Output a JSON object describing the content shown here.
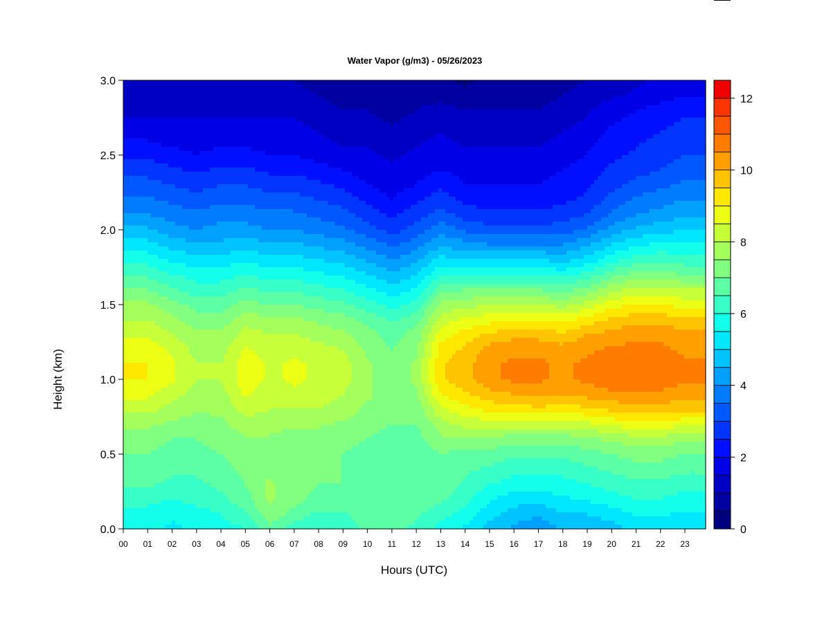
{
  "chart_data": {
    "type": "heatmap",
    "title": "Water Vapor (g/m3) - 05/26/2023",
    "xlabel": "Hours (UTC)",
    "ylabel": "Height (km)",
    "x_ticks": [
      "00",
      "01",
      "02",
      "03",
      "04",
      "05",
      "06",
      "07",
      "08",
      "09",
      "10",
      "11",
      "12",
      "13",
      "14",
      "15",
      "16",
      "17",
      "18",
      "19",
      "20",
      "21",
      "22",
      "23"
    ],
    "xlim": [
      0,
      23.85
    ],
    "y_ticks": [
      "0.0",
      "0.5",
      "1.0",
      "1.5",
      "2.0",
      "2.5",
      "3.0"
    ],
    "ylim": [
      0,
      3.0
    ],
    "colorbar": {
      "range": [
        0,
        12.5
      ],
      "step": 0.5,
      "ticks": [
        "0",
        "2",
        "4",
        "6",
        "8",
        "10",
        "12"
      ],
      "colors": [
        "#00007F",
        "#0000A0",
        "#0000C4",
        "#0000E6",
        "#0010FF",
        "#0034FF",
        "#0058FF",
        "#007CFF",
        "#00A0FF",
        "#00C4FF",
        "#00E8FF",
        "#14FFEB",
        "#38FFC7",
        "#5CFFA3",
        "#80FF80",
        "#A3FF5C",
        "#C7FF38",
        "#EBFF14",
        "#FFE800",
        "#FFC400",
        "#FFA000",
        "#FF7C00",
        "#FF5800",
        "#FF3400",
        "#F00000"
      ]
    },
    "x_hours": [
      0,
      1,
      2,
      3,
      4,
      5,
      6,
      7,
      8,
      9,
      10,
      11,
      12,
      13,
      14,
      15,
      16,
      17,
      18,
      19,
      20,
      21,
      22,
      23,
      23.85
    ],
    "y_heights_km": [
      0.0,
      0.1,
      0.2,
      0.3,
      0.4,
      0.5,
      0.6,
      0.7,
      0.8,
      0.9,
      1.0,
      1.1,
      1.2,
      1.3,
      1.4,
      1.5,
      1.6,
      1.7,
      1.8,
      1.9,
      2.0,
      2.1,
      2.2,
      2.3,
      2.4,
      2.5,
      2.6,
      2.7,
      2.8,
      2.9,
      3.0
    ],
    "values_g_m3": [
      [
        5.6,
        5.8,
        6.2,
        6.6,
        6.8,
        7.0,
        7.2,
        7.6,
        8.2,
        8.6,
        9.0,
        9.0,
        8.8,
        8.4,
        8.0,
        7.6,
        7.0,
        6.4,
        5.8,
        5.2,
        4.6,
        4.0,
        3.6,
        3.2,
        2.8,
        2.4,
        2.0,
        1.6,
        1.4,
        1.2,
        1.0
      ],
      [
        5.6,
        5.8,
        6.2,
        6.6,
        6.8,
        7.0,
        7.2,
        7.6,
        8.2,
        8.6,
        9.0,
        9.0,
        8.8,
        8.4,
        8.0,
        7.6,
        7.0,
        6.4,
        5.8,
        5.2,
        4.6,
        4.0,
        3.6,
        3.2,
        2.8,
        2.4,
        2.0,
        1.6,
        1.4,
        1.2,
        1.0
      ],
      [
        5.4,
        5.6,
        6.0,
        6.4,
        6.6,
        6.8,
        7.0,
        7.4,
        7.8,
        8.2,
        8.6,
        8.6,
        8.4,
        8.0,
        7.6,
        7.2,
        6.6,
        6.0,
        5.4,
        4.8,
        4.2,
        3.8,
        3.4,
        3.0,
        2.6,
        2.2,
        1.8,
        1.6,
        1.4,
        1.2,
        1.0
      ],
      [
        5.6,
        5.8,
        6.2,
        6.4,
        6.6,
        6.8,
        7.0,
        7.2,
        7.6,
        7.8,
        8.0,
        8.0,
        7.8,
        7.6,
        7.2,
        6.8,
        6.2,
        5.8,
        5.2,
        4.6,
        4.0,
        3.6,
        3.2,
        2.8,
        2.4,
        2.0,
        1.8,
        1.6,
        1.4,
        1.2,
        1.0
      ],
      [
        5.8,
        6.0,
        6.4,
        6.6,
        6.8,
        7.0,
        7.2,
        7.4,
        7.6,
        7.8,
        8.0,
        8.0,
        7.8,
        7.6,
        7.2,
        6.8,
        6.2,
        5.8,
        5.2,
        4.6,
        4.2,
        3.8,
        3.4,
        3.0,
        2.6,
        2.2,
        1.8,
        1.6,
        1.4,
        1.2,
        1.0
      ],
      [
        6.0,
        6.4,
        6.8,
        7.0,
        7.2,
        7.2,
        7.4,
        7.8,
        8.2,
        8.6,
        8.8,
        8.8,
        8.6,
        8.2,
        7.8,
        7.2,
        6.6,
        6.0,
        5.4,
        4.8,
        4.2,
        3.8,
        3.4,
        3.0,
        2.6,
        2.2,
        1.8,
        1.6,
        1.4,
        1.2,
        1.0
      ],
      [
        6.8,
        7.4,
        7.6,
        7.6,
        7.4,
        7.2,
        7.4,
        7.8,
        8.0,
        8.2,
        8.4,
        8.4,
        8.2,
        8.0,
        7.6,
        7.0,
        6.4,
        5.8,
        5.2,
        4.6,
        4.0,
        3.6,
        3.2,
        2.8,
        2.4,
        2.0,
        1.8,
        1.6,
        1.4,
        1.2,
        1.0
      ],
      [
        6.2,
        6.8,
        7.2,
        7.2,
        7.0,
        7.0,
        7.2,
        7.6,
        8.0,
        8.4,
        8.6,
        8.6,
        8.4,
        8.0,
        7.6,
        7.0,
        6.4,
        5.8,
        5.2,
        4.6,
        4.0,
        3.6,
        3.2,
        2.8,
        2.4,
        2.0,
        1.8,
        1.6,
        1.4,
        1.2,
        1.0
      ],
      [
        6.0,
        6.4,
        6.8,
        7.0,
        7.0,
        7.0,
        7.2,
        7.6,
        8.0,
        8.2,
        8.4,
        8.4,
        8.2,
        7.8,
        7.4,
        6.8,
        6.2,
        5.6,
        5.0,
        4.4,
        3.8,
        3.4,
        3.0,
        2.6,
        2.2,
        1.8,
        1.6,
        1.4,
        1.2,
        1.0,
        0.8
      ],
      [
        6.0,
        6.4,
        6.8,
        7.0,
        7.0,
        7.0,
        7.2,
        7.4,
        7.8,
        8.0,
        8.2,
        8.2,
        8.0,
        7.6,
        7.2,
        6.6,
        6.0,
        5.4,
        4.8,
        4.2,
        3.6,
        3.2,
        2.8,
        2.4,
        2.0,
        1.6,
        1.4,
        1.2,
        1.0,
        0.8,
        0.8
      ],
      [
        6.8,
        7.0,
        7.0,
        6.8,
        6.8,
        6.8,
        7.0,
        7.2,
        7.4,
        7.6,
        7.6,
        7.6,
        7.4,
        7.2,
        6.8,
        6.2,
        5.6,
        5.0,
        4.4,
        3.8,
        3.2,
        2.8,
        2.4,
        2.0,
        1.8,
        1.6,
        1.4,
        1.2,
        1.0,
        0.8,
        0.6
      ],
      [
        6.6,
        6.8,
        6.8,
        6.8,
        6.6,
        6.6,
        6.8,
        7.0,
        7.2,
        7.2,
        7.2,
        7.2,
        7.0,
        6.8,
        6.4,
        5.8,
        5.2,
        4.6,
        4.0,
        3.4,
        2.8,
        2.4,
        2.0,
        1.8,
        1.6,
        1.4,
        1.2,
        1.0,
        0.8,
        0.6,
        0.6
      ],
      [
        6.4,
        6.6,
        6.8,
        6.8,
        6.6,
        6.6,
        6.8,
        7.0,
        7.2,
        7.4,
        7.6,
        7.6,
        7.4,
        7.2,
        6.8,
        6.2,
        5.6,
        5.0,
        4.4,
        3.8,
        3.2,
        2.8,
        2.4,
        2.0,
        1.8,
        1.6,
        1.4,
        1.2,
        1.0,
        0.8,
        0.6
      ],
      [
        5.8,
        6.2,
        6.6,
        6.8,
        6.8,
        7.0,
        7.4,
        7.8,
        8.4,
        9.0,
        9.4,
        9.4,
        9.2,
        8.8,
        8.2,
        7.6,
        6.8,
        6.0,
        5.2,
        4.4,
        3.8,
        3.2,
        2.8,
        2.4,
        2.0,
        1.8,
        1.6,
        1.4,
        1.2,
        0.8,
        0.6
      ],
      [
        5.4,
        5.8,
        6.2,
        6.4,
        6.6,
        6.8,
        7.4,
        8.2,
        8.8,
        9.4,
        9.8,
        9.8,
        9.6,
        9.2,
        8.6,
        7.8,
        7.0,
        6.0,
        5.0,
        4.2,
        3.4,
        2.8,
        2.4,
        2.0,
        1.8,
        1.6,
        1.4,
        1.2,
        1.0,
        0.6,
        0.4
      ],
      [
        4.8,
        5.2,
        5.6,
        6.0,
        6.4,
        6.8,
        7.4,
        8.2,
        9.2,
        9.8,
        10.4,
        10.4,
        10.2,
        9.6,
        8.8,
        8.0,
        7.0,
        6.0,
        5.0,
        4.0,
        3.2,
        2.6,
        2.2,
        2.0,
        1.8,
        1.6,
        1.4,
        1.2,
        1.0,
        0.8,
        0.6
      ],
      [
        4.4,
        4.8,
        5.2,
        5.8,
        6.2,
        6.6,
        7.2,
        8.2,
        9.2,
        10.0,
        10.6,
        10.6,
        10.4,
        9.8,
        9.0,
        8.0,
        7.0,
        6.0,
        5.0,
        4.0,
        3.2,
        2.6,
        2.2,
        2.0,
        1.8,
        1.6,
        1.4,
        1.2,
        1.0,
        0.8,
        0.6
      ],
      [
        4.0,
        4.6,
        5.2,
        5.8,
        6.2,
        6.6,
        7.2,
        8.2,
        9.4,
        10.2,
        10.6,
        10.6,
        10.4,
        9.8,
        9.0,
        8.0,
        7.0,
        6.0,
        5.0,
        4.0,
        3.2,
        2.6,
        2.2,
        2.0,
        1.8,
        1.6,
        1.4,
        1.2,
        1.0,
        0.8,
        0.8
      ],
      [
        4.6,
        5.0,
        5.4,
        5.8,
        6.2,
        6.6,
        7.2,
        8.2,
        9.2,
        10.0,
        10.4,
        10.4,
        10.2,
        9.6,
        8.8,
        7.8,
        6.8,
        5.8,
        4.8,
        4.0,
        3.2,
        2.8,
        2.4,
        2.2,
        2.0,
        1.8,
        1.6,
        1.4,
        1.2,
        1.0,
        0.8
      ],
      [
        4.6,
        5.0,
        5.6,
        6.0,
        6.4,
        6.8,
        7.4,
        8.4,
        9.4,
        10.2,
        10.6,
        10.6,
        10.4,
        10.0,
        9.2,
        8.2,
        7.2,
        6.2,
        5.2,
        4.4,
        3.6,
        3.0,
        2.6,
        2.4,
        2.2,
        2.0,
        1.8,
        1.6,
        1.4,
        1.2,
        1.0
      ],
      [
        4.8,
        5.2,
        5.8,
        6.2,
        6.6,
        7.0,
        7.6,
        8.6,
        9.6,
        10.4,
        10.8,
        10.8,
        10.6,
        10.2,
        9.6,
        8.8,
        7.8,
        6.8,
        5.8,
        5.0,
        4.2,
        3.6,
        3.2,
        2.8,
        2.6,
        2.4,
        2.2,
        2.0,
        1.8,
        1.4,
        1.2
      ],
      [
        5.2,
        5.6,
        6.0,
        6.4,
        6.8,
        7.2,
        7.8,
        8.8,
        9.8,
        10.4,
        10.8,
        10.8,
        10.6,
        10.4,
        9.8,
        9.0,
        8.2,
        7.2,
        6.2,
        5.4,
        4.6,
        4.0,
        3.6,
        3.2,
        2.8,
        2.6,
        2.4,
        2.2,
        2.0,
        1.6,
        1.4
      ],
      [
        5.2,
        5.6,
        6.0,
        6.4,
        6.8,
        7.2,
        7.8,
        8.8,
        9.8,
        10.4,
        10.8,
        10.8,
        10.6,
        10.4,
        9.8,
        9.0,
        8.2,
        7.2,
        6.4,
        5.6,
        4.8,
        4.2,
        3.8,
        3.4,
        3.0,
        2.8,
        2.6,
        2.4,
        2.2,
        1.8,
        1.6
      ],
      [
        5.0,
        5.4,
        5.8,
        6.2,
        6.6,
        7.0,
        7.6,
        8.6,
        9.6,
        10.2,
        10.6,
        10.6,
        10.4,
        10.2,
        9.6,
        8.8,
        8.0,
        7.0,
        6.2,
        5.6,
        5.0,
        4.4,
        4.0,
        3.6,
        3.2,
        3.0,
        2.8,
        2.6,
        2.4,
        2.0,
        1.8
      ],
      [
        5.0,
        5.4,
        5.8,
        6.2,
        6.6,
        7.0,
        7.6,
        8.6,
        9.6,
        10.2,
        10.6,
        10.6,
        10.4,
        10.2,
        9.6,
        8.8,
        8.0,
        7.0,
        6.2,
        5.6,
        5.0,
        4.4,
        4.0,
        3.6,
        3.2,
        3.0,
        2.8,
        2.6,
        2.4,
        2.0,
        1.8
      ]
    ]
  }
}
